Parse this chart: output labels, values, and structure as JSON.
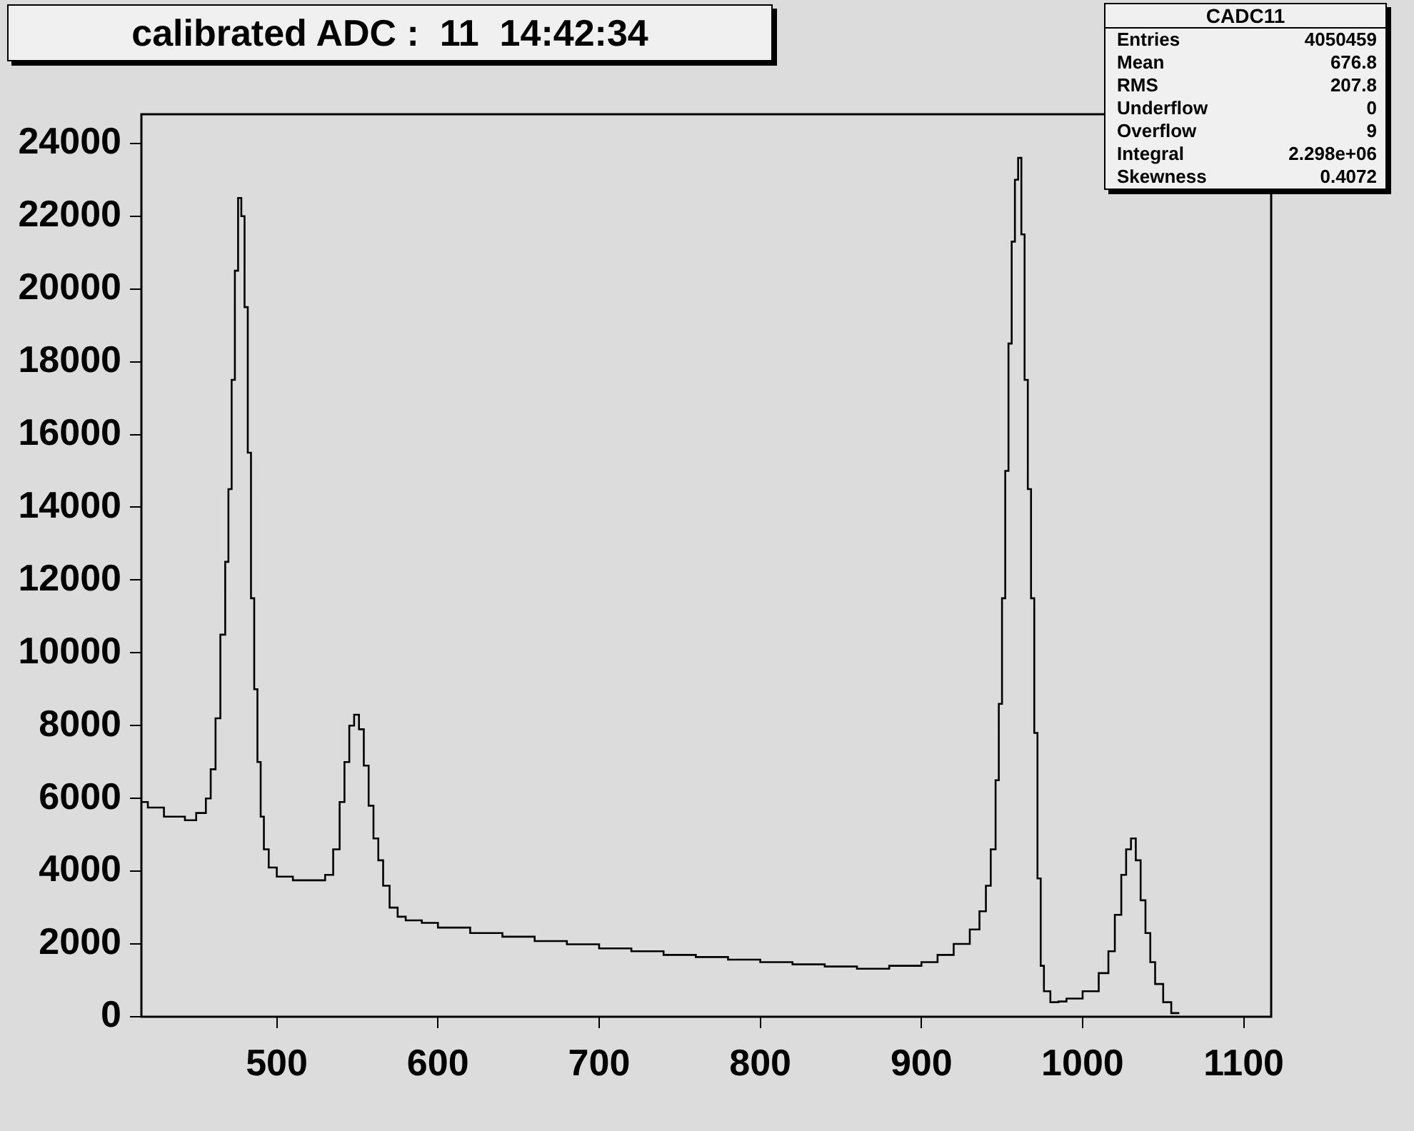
{
  "chart_data": {
    "type": "histogram",
    "title": "calibrated ADC :  11  14:42:34",
    "bins": [
      416,
      420,
      430,
      443,
      450,
      456,
      459,
      462,
      465,
      468,
      470,
      472,
      474,
      476,
      478,
      480,
      482,
      484,
      486,
      488,
      490,
      492,
      495,
      500,
      510,
      520,
      530,
      535,
      539,
      542,
      545,
      548,
      551,
      554,
      557,
      560,
      563,
      566,
      570,
      575,
      580,
      590,
      600,
      620,
      640,
      660,
      680,
      700,
      720,
      740,
      760,
      780,
      800,
      820,
      840,
      860,
      880,
      900,
      910,
      920,
      930,
      936,
      940,
      943,
      946,
      948,
      950,
      952,
      954,
      956,
      958,
      960,
      962,
      964,
      966,
      968,
      970,
      972,
      974,
      976,
      980,
      985,
      990,
      1000,
      1010,
      1016,
      1020,
      1024,
      1027,
      1030,
      1033,
      1036,
      1039,
      1042,
      1045,
      1050,
      1055,
      1060
    ],
    "values": [
      5900,
      5750,
      5500,
      5400,
      5600,
      6000,
      6800,
      8200,
      10500,
      12500,
      14500,
      17500,
      20500,
      22500,
      22000,
      19500,
      15500,
      11500,
      9000,
      7000,
      5500,
      4600,
      4100,
      3850,
      3750,
      3750,
      3900,
      4600,
      5900,
      7000,
      8000,
      8300,
      7900,
      6900,
      5800,
      4900,
      4300,
      3600,
      3000,
      2750,
      2650,
      2580,
      2450,
      2300,
      2200,
      2080,
      1990,
      1880,
      1800,
      1700,
      1640,
      1570,
      1500,
      1440,
      1380,
      1320,
      1400,
      1500,
      1700,
      2000,
      2400,
      2900,
      3600,
      4600,
      6500,
      8600,
      11500,
      15000,
      18500,
      21300,
      23000,
      23600,
      21500,
      17500,
      14500,
      11500,
      7800,
      3800,
      1400,
      700,
      400,
      420,
      500,
      700,
      1200,
      1800,
      2800,
      3900,
      4600,
      4900,
      4300,
      3200,
      2300,
      1500,
      900,
      400,
      100
    ],
    "color": "#000000",
    "xlim": [
      416,
      1117
    ],
    "ylim": [
      0,
      24800
    ],
    "xticks": [
      500,
      600,
      700,
      800,
      900,
      1000,
      1100
    ],
    "yticks": [
      0,
      2000,
      4000,
      6000,
      8000,
      10000,
      12000,
      14000,
      16000,
      18000,
      20000,
      22000,
      24000
    ],
    "grid": false,
    "legend": false,
    "annotations": [
      "CADC11",
      "Entries",
      "4050459",
      "Mean",
      "676.8",
      "RMS",
      "207.8",
      "Underflow",
      "0",
      "Overflow",
      "9",
      "Integral",
      "2.298e+06",
      "Skewness",
      "0.4072"
    ]
  }
}
